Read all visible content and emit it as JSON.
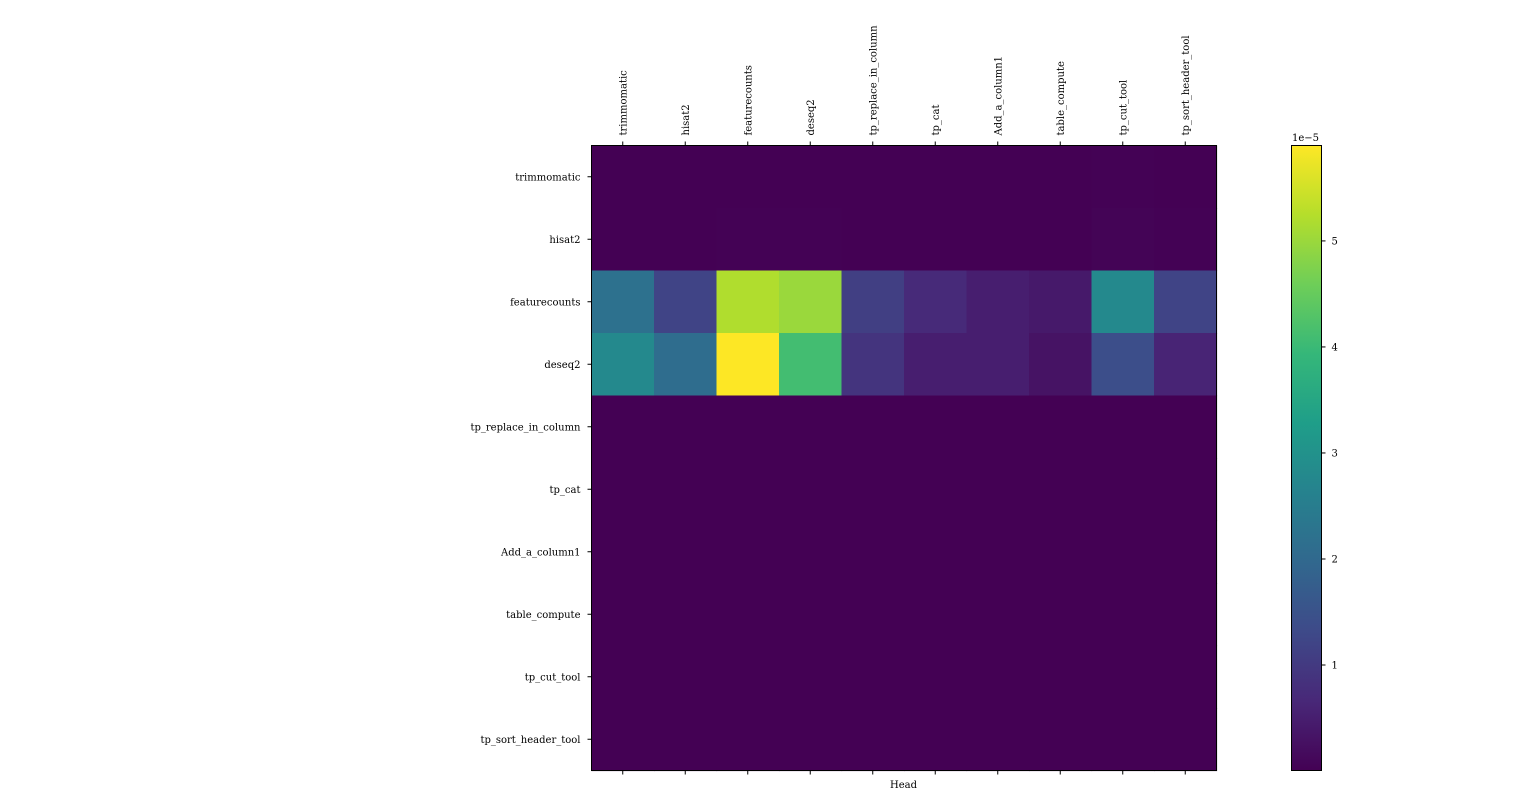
{
  "chart_data": {
    "type": "heatmap",
    "title": "",
    "xlabel": "Head",
    "ylabel": "",
    "x_categories": [
      "trimmomatic",
      "hisat2",
      "featurecounts",
      "deseq2",
      "tp_replace_in_column",
      "tp_cat",
      "Add_a_column1",
      "table_compute",
      "tp_cut_tool",
      "tp_sort_header_tool"
    ],
    "y_categories": [
      "trimmomatic",
      "hisat2",
      "featurecounts",
      "deseq2",
      "tp_replace_in_column",
      "tp_cat",
      "Add_a_column1",
      "table_compute",
      "tp_cut_tool",
      "tp_sort_header_tool"
    ],
    "values": [
      [
        5e-08,
        5e-08,
        5e-08,
        1e-07,
        5e-08,
        5e-08,
        5e-08,
        5e-08,
        3e-07,
        8e-08
      ],
      [
        5e-08,
        5e-08,
        1.5e-07,
        2e-07,
        5e-08,
        5e-08,
        5e-08,
        5e-08,
        5e-07,
        1.5e-07
      ],
      [
        2.2e-05,
        1.2e-05,
        5.2e-05,
        5e-05,
        1.1e-05,
        7e-06,
        5e-06,
        4e-06,
        2.8e-05,
        1.2e-05
      ],
      [
        2.8e-05,
        2.1e-05,
        5.9e-05,
        4.1e-05,
        9e-06,
        5e-06,
        5e-06,
        3e-06,
        1.4e-05,
        6e-06
      ],
      [
        5e-08,
        5e-08,
        5e-08,
        5e-08,
        5e-08,
        5e-08,
        5e-08,
        5e-08,
        5e-08,
        5e-08
      ],
      [
        5e-08,
        5e-08,
        5e-08,
        5e-08,
        5e-08,
        5e-08,
        5e-08,
        5e-08,
        5e-08,
        5e-08
      ],
      [
        5e-08,
        5e-08,
        5e-08,
        5e-08,
        5e-08,
        5e-08,
        5e-08,
        5e-08,
        5e-08,
        5e-08
      ],
      [
        5e-08,
        5e-08,
        5e-08,
        5e-08,
        5e-08,
        5e-08,
        5e-08,
        5e-08,
        5e-08,
        5e-08
      ],
      [
        5e-08,
        5e-08,
        5e-08,
        5e-08,
        5e-08,
        5e-08,
        5e-08,
        5e-08,
        5e-08,
        5e-08
      ],
      [
        5e-08,
        5e-08,
        5e-08,
        5e-08,
        5e-08,
        5e-08,
        5e-08,
        5e-08,
        5e-08,
        5e-08
      ]
    ],
    "colormap": "viridis",
    "vmin": 5e-08,
    "vmax": 5.9e-05,
    "colorbar": {
      "ticks": [
        1,
        2,
        3,
        4,
        5
      ],
      "tick_labels": [
        "1",
        "2",
        "3",
        "4",
        "5"
      ],
      "scale_label": "1e−5",
      "scale_factor": 1e-05
    }
  }
}
